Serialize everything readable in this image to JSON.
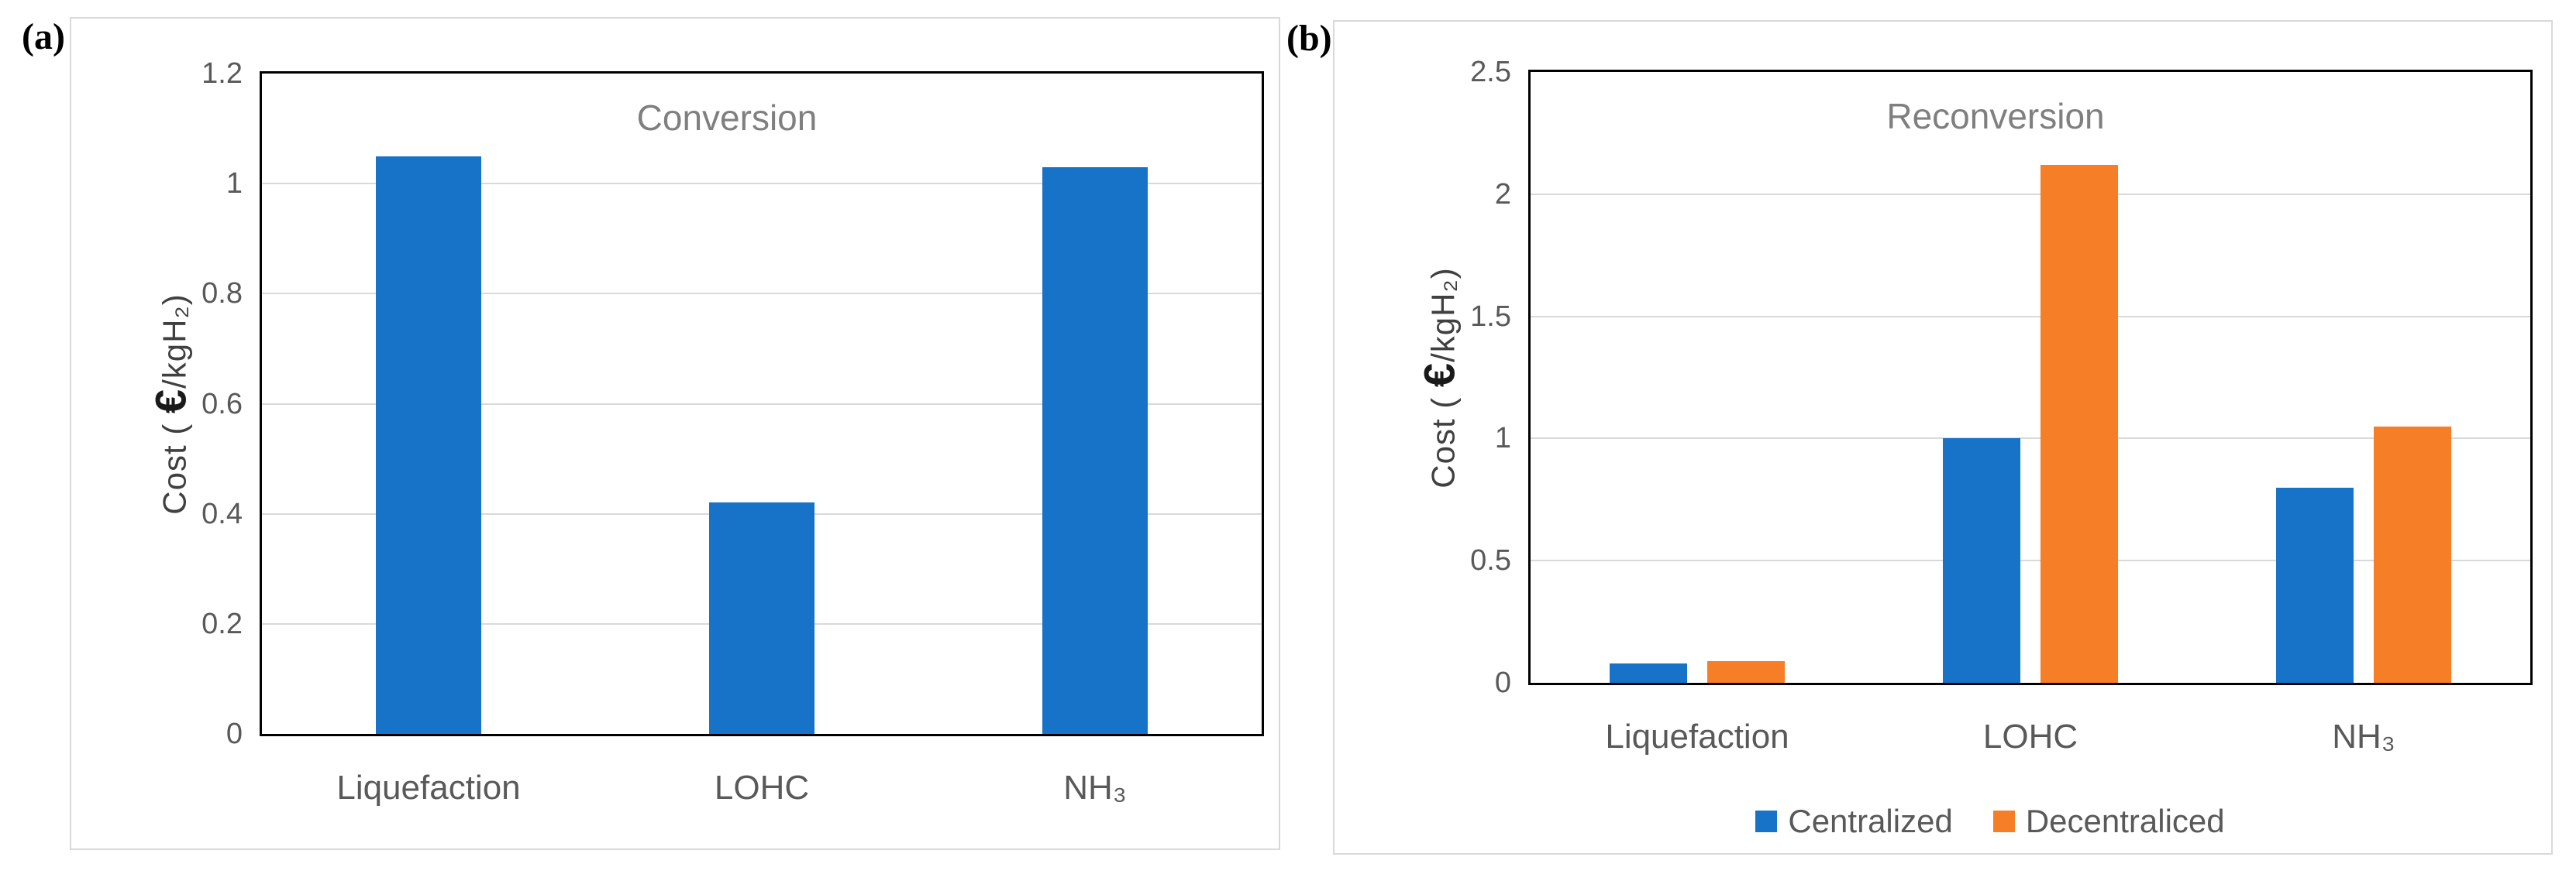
{
  "figure": {
    "background": "#ffffff",
    "panels": [
      {
        "id": "a",
        "label": "(a)"
      },
      {
        "id": "b",
        "label": "(b)"
      }
    ]
  },
  "colors": {
    "centralized_blue": "#1673C8",
    "decentraliced_orange": "#F57E26",
    "gridline_gray": "#d9d9d9",
    "axis_black": "#000000",
    "tick_text_gray": "#595959",
    "title_gray": "#7f7f7f"
  },
  "chart_data": [
    {
      "type": "bar",
      "title": "Conversion",
      "categories": [
        "Liquefaction",
        "LOHC",
        "NH₃"
      ],
      "values": [
        1.05,
        0.42,
        1.03
      ],
      "bar_color": "#1673C8",
      "xlabel": "",
      "ylabel": "Cost ( €/kgH₂)",
      "ylabel_prefix": "Cost ( ",
      "ylabel_euro": "€",
      "ylabel_suffix": "/kgH₂)",
      "ylim": [
        0,
        1.2
      ],
      "yticks": [
        "0",
        "0.2",
        "0.4",
        "0.6",
        "0.8",
        "1",
        "1.2"
      ],
      "grid": true,
      "legend": null
    },
    {
      "type": "bar",
      "title": "Reconversion",
      "categories": [
        "Liquefaction",
        "LOHC",
        "NH₃"
      ],
      "series": [
        {
          "name": "Centralized",
          "color": "#1673C8",
          "values": [
            0.08,
            1.0,
            0.8
          ]
        },
        {
          "name": "Decentraliced",
          "color": "#F57E26",
          "values": [
            0.09,
            2.12,
            1.05
          ]
        }
      ],
      "xlabel": "",
      "ylabel": "Cost ( €/kgH₂)",
      "ylabel_prefix": "Cost ( ",
      "ylabel_euro": "€",
      "ylabel_suffix": "/kgH₂)",
      "ylim": [
        0,
        2.5
      ],
      "yticks": [
        "0",
        "0.5",
        "1",
        "1.5",
        "2",
        "2.5"
      ],
      "grid": true,
      "legend_position": "bottom"
    }
  ]
}
